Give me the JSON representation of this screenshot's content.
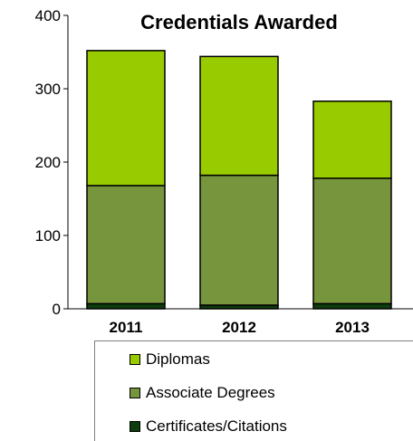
{
  "chart_data": {
    "type": "bar",
    "stacked": true,
    "title": "Credentials Awarded",
    "categories": [
      "2011",
      "2012",
      "2013"
    ],
    "ylim": [
      0,
      400
    ],
    "yticks": [
      "0",
      "100",
      "200",
      "300",
      "400"
    ],
    "series": [
      {
        "name": "Certificates/Citations",
        "values": [
          7,
          5,
          7
        ],
        "color": "#0d3d0d"
      },
      {
        "name": "Associate Degrees",
        "values": [
          161,
          177,
          171
        ],
        "color": "#77953d"
      },
      {
        "name": "Diplomas",
        "values": [
          184,
          162,
          105
        ],
        "color": "#99cc00"
      }
    ],
    "legend_order": [
      "Diplomas",
      "Associate Degrees",
      "Certificates/Citations"
    ],
    "legend_position": "bottom",
    "grid": false
  }
}
